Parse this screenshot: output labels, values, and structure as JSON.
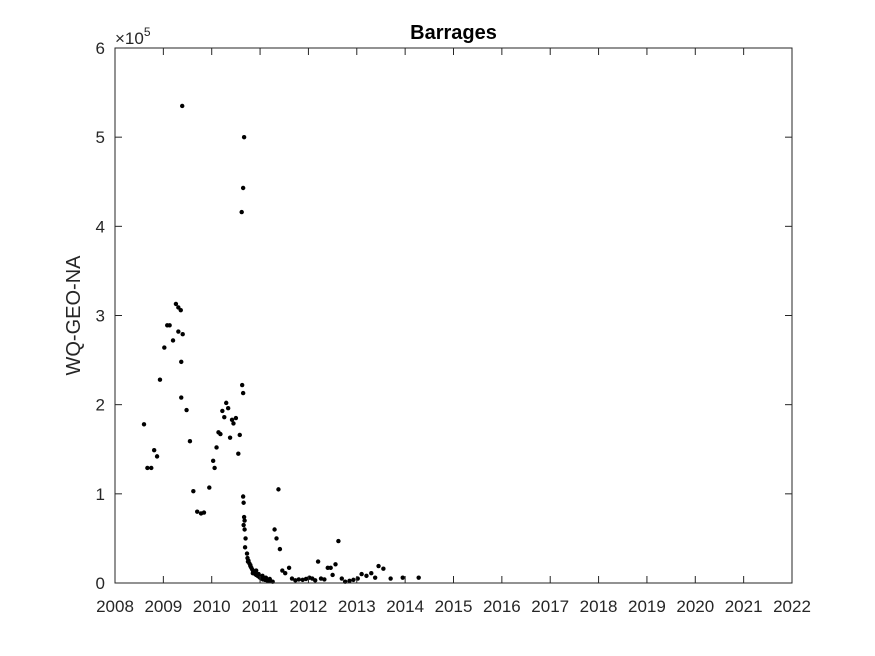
{
  "chart_data": {
    "type": "scatter",
    "title": "Barrages",
    "xlabel": "",
    "ylabel": "WQ-GEO-NA",
    "y_exponent_label": "×10^5",
    "y_exponent_base": "×10",
    "y_exponent_power": "5",
    "xlim": [
      2008,
      2022
    ],
    "ylim": [
      0,
      600000
    ],
    "x_ticks": [
      2008,
      2009,
      2010,
      2011,
      2012,
      2013,
      2014,
      2015,
      2016,
      2017,
      2018,
      2019,
      2020,
      2021,
      2022
    ],
    "y_ticks": [
      0,
      1,
      2,
      3,
      4,
      5,
      6
    ],
    "y_tick_scale": 100000,
    "grid": false,
    "marker_color": "#000000",
    "series": [
      {
        "points": [
          [
            2008.6,
            178000
          ],
          [
            2008.67,
            129000
          ],
          [
            2008.75,
            129000
          ],
          [
            2008.81,
            149000
          ],
          [
            2008.87,
            142000
          ],
          [
            2008.93,
            228000
          ],
          [
            2009.02,
            264000
          ],
          [
            2009.08,
            289000
          ],
          [
            2009.13,
            289000
          ],
          [
            2009.2,
            272000
          ],
          [
            2009.26,
            313000
          ],
          [
            2009.31,
            309000
          ],
          [
            2009.36,
            306000
          ],
          [
            2009.39,
            535000
          ],
          [
            2009.31,
            282000
          ],
          [
            2009.4,
            279000
          ],
          [
            2009.37,
            248000
          ],
          [
            2009.37,
            208000
          ],
          [
            2009.48,
            194000
          ],
          [
            2009.55,
            159000
          ],
          [
            2009.62,
            103000
          ],
          [
            2009.7,
            80000
          ],
          [
            2009.78,
            78000
          ],
          [
            2009.84,
            79000
          ],
          [
            2009.95,
            107000
          ],
          [
            2010.03,
            137000
          ],
          [
            2010.06,
            129000
          ],
          [
            2010.1,
            152000
          ],
          [
            2010.14,
            169000
          ],
          [
            2010.18,
            167000
          ],
          [
            2010.22,
            193000
          ],
          [
            2010.26,
            186000
          ],
          [
            2010.3,
            202000
          ],
          [
            2010.34,
            196000
          ],
          [
            2010.38,
            163000
          ],
          [
            2010.42,
            183000
          ],
          [
            2010.45,
            179000
          ],
          [
            2010.5,
            185000
          ],
          [
            2010.55,
            145000
          ],
          [
            2010.58,
            166000
          ],
          [
            2010.63,
            222000
          ],
          [
            2010.65,
            213000
          ],
          [
            2010.62,
            416000
          ],
          [
            2010.65,
            443000
          ],
          [
            2010.67,
            500000
          ],
          [
            2010.65,
            97000
          ],
          [
            2010.66,
            90000
          ],
          [
            2010.67,
            74000
          ],
          [
            2010.68,
            70000
          ],
          [
            2010.66,
            65000
          ],
          [
            2010.68,
            60000
          ],
          [
            2010.7,
            50000
          ],
          [
            2010.69,
            40000
          ],
          [
            2010.73,
            33000
          ],
          [
            2010.74,
            28000
          ],
          [
            2010.76,
            25000
          ],
          [
            2010.78,
            22000
          ],
          [
            2010.8,
            19000
          ],
          [
            2010.82,
            17000
          ],
          [
            2010.84,
            15000
          ],
          [
            2010.86,
            13000
          ],
          [
            2010.88,
            12000
          ],
          [
            2010.9,
            10000
          ],
          [
            2010.92,
            9000
          ],
          [
            2010.95,
            8000
          ],
          [
            2010.98,
            7000
          ],
          [
            2011.0,
            6000
          ],
          [
            2011.03,
            5000
          ],
          [
            2011.06,
            4000
          ],
          [
            2011.1,
            3500
          ],
          [
            2011.14,
            3000
          ],
          [
            2011.18,
            2500
          ],
          [
            2011.22,
            2000
          ],
          [
            2011.26,
            1500
          ],
          [
            2010.75,
            24000
          ],
          [
            2010.8,
            20000
          ],
          [
            2010.85,
            11000
          ],
          [
            2010.92,
            14000
          ],
          [
            2010.97,
            10000
          ],
          [
            2011.05,
            8000
          ],
          [
            2011.12,
            6000
          ],
          [
            2011.2,
            4500
          ],
          [
            2011.3,
            60000
          ],
          [
            2011.34,
            50000
          ],
          [
            2011.38,
            105000
          ],
          [
            2011.41,
            38000
          ],
          [
            2011.46,
            14000
          ],
          [
            2011.52,
            11000
          ],
          [
            2011.6,
            17000
          ],
          [
            2011.66,
            5000
          ],
          [
            2011.73,
            3000
          ],
          [
            2011.8,
            4000
          ],
          [
            2011.88,
            3500
          ],
          [
            2011.95,
            4500
          ],
          [
            2012.02,
            6000
          ],
          [
            2012.08,
            5000
          ],
          [
            2012.14,
            3000
          ],
          [
            2012.2,
            24000
          ],
          [
            2012.26,
            5000
          ],
          [
            2012.33,
            4000
          ],
          [
            2012.4,
            17000
          ],
          [
            2012.46,
            17000
          ],
          [
            2012.5,
            9000
          ],
          [
            2012.56,
            21000
          ],
          [
            2012.62,
            47000
          ],
          [
            2012.69,
            5000
          ],
          [
            2012.76,
            1500
          ],
          [
            2012.85,
            2500
          ],
          [
            2012.93,
            3500
          ],
          [
            2013.02,
            5000
          ],
          [
            2013.1,
            10000
          ],
          [
            2013.2,
            8000
          ],
          [
            2013.3,
            11000
          ],
          [
            2013.38,
            6000
          ],
          [
            2013.45,
            19000
          ],
          [
            2013.55,
            16000
          ],
          [
            2013.7,
            5000
          ],
          [
            2013.95,
            6000
          ],
          [
            2014.28,
            6000
          ]
        ]
      }
    ]
  }
}
